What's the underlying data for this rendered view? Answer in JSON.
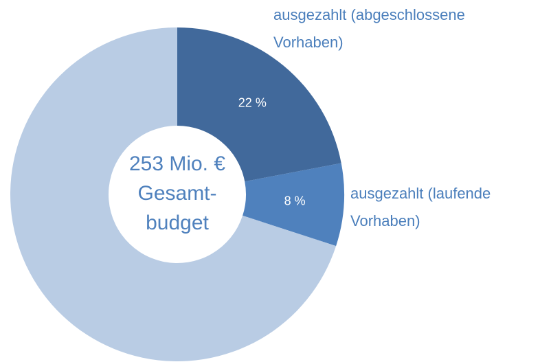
{
  "chart_data": {
    "type": "donut",
    "categories": [
      "ausgezahlt (abgeschlossene Vorhaben)",
      "ausgezahlt (laufende Vorhaben)",
      null
    ],
    "values": [
      22,
      8,
      70
    ],
    "value_labels": [
      "22 %",
      "8 %",
      null
    ],
    "colors": [
      "#41699b",
      "#4f81bd",
      "#b9cce4"
    ],
    "center_label": [
      "253 Mio. €",
      "Gesamt-",
      "budget"
    ]
  }
}
